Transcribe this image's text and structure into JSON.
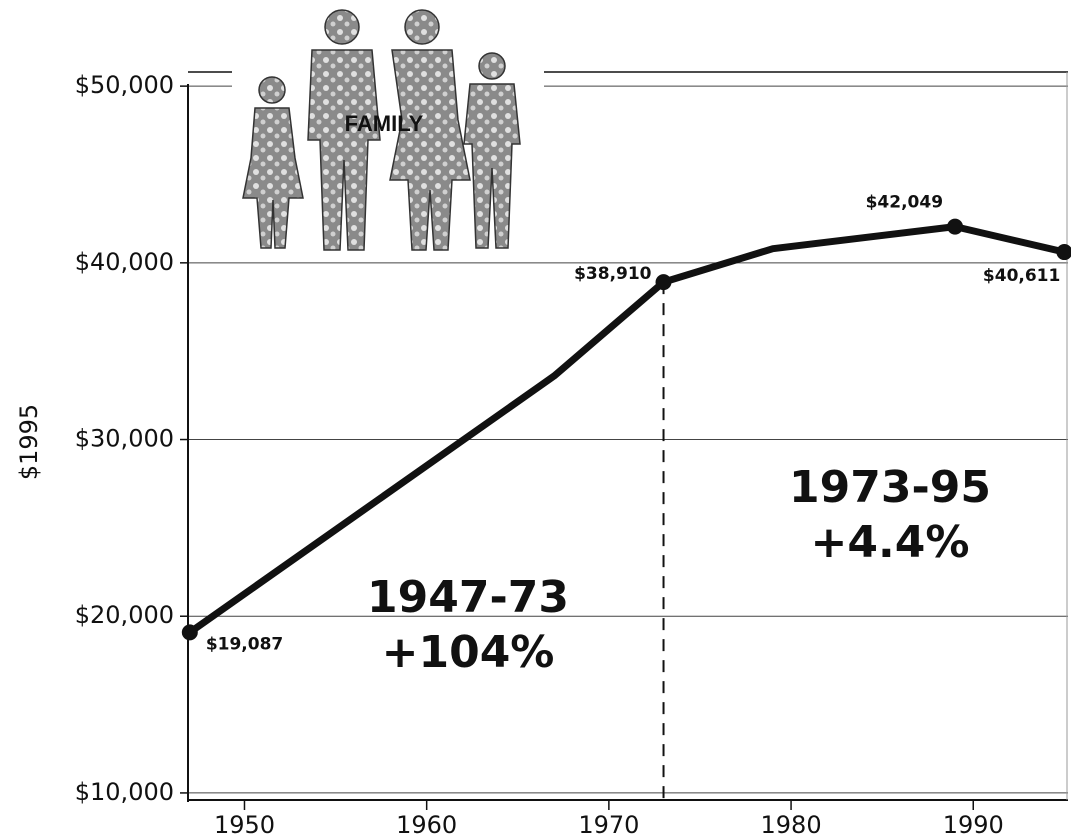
{
  "chart_data": {
    "type": "line",
    "y_label": "$1995",
    "icon_label": "FAMILY",
    "x": [
      1947,
      1967,
      1973,
      1979,
      1989,
      1995
    ],
    "series": [
      {
        "color": "#111111",
        "values": [
          19087,
          33600,
          38910,
          40800,
          42049,
          40611
        ],
        "value_labels": [
          "$19,087",
          null,
          "$38,910",
          null,
          "$42,049",
          "$40,611"
        ]
      }
    ],
    "xlim": [
      1946.9,
      1995.2
    ],
    "xticks": [
      1950,
      1960,
      1970,
      1980,
      1990
    ],
    "ylim": [
      9600,
      50800
    ],
    "yticks": [
      {
        "value": 10000,
        "label": "$10,000"
      },
      {
        "value": 20000,
        "label": "$20,000"
      },
      {
        "value": 30000,
        "label": "$30,000"
      },
      {
        "value": 40000,
        "label": "$40,000"
      },
      {
        "value": 50000,
        "label": "$50,000"
      }
    ],
    "grid": true,
    "annotations": [
      {
        "text": "1947-73"
      },
      {
        "text": "+104%"
      },
      {
        "text": "1973-95"
      },
      {
        "text": "+4.4%"
      }
    ]
  }
}
